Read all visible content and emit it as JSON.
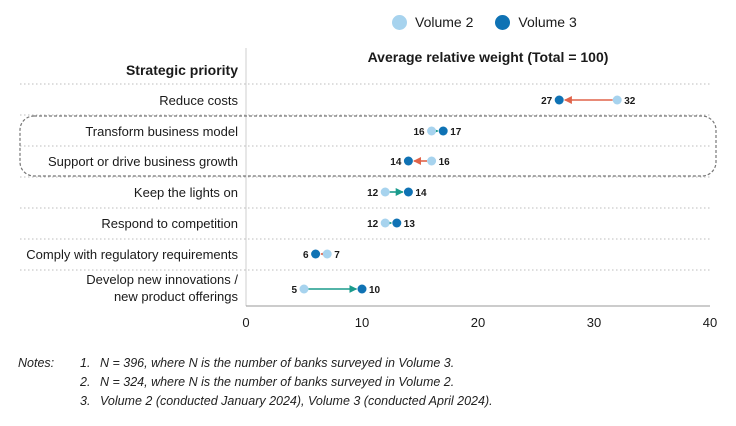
{
  "colors": {
    "volume2": "#a7d3ee",
    "volume3": "#0f72b4",
    "increase": "#1a9b8c",
    "decrease": "#e0644a",
    "gridline": "#bdbdbd",
    "group_box": "#777777"
  },
  "legend": {
    "volume2_label": "Volume 2",
    "volume3_label": "Volume 3"
  },
  "chart_data": {
    "type": "dumbbell",
    "title": "Average relative weight (Total = 100)",
    "category_header": "Strategic priority",
    "xlim": [
      0,
      40
    ],
    "xticks": [
      "0",
      "10",
      "20",
      "30",
      "40"
    ],
    "categories": [
      "Reduce costs",
      "Transform business model",
      "Support or drive business growth",
      "Keep the lights on",
      "Respond to competition",
      "Comply with regulatory requirements",
      "Develop new innovations / new product offerings"
    ],
    "category_lines": [
      [
        "Reduce costs"
      ],
      [
        "Transform business model"
      ],
      [
        "Support or drive business growth"
      ],
      [
        "Keep the lights on"
      ],
      [
        "Respond to competition"
      ],
      [
        "Comply with regulatory requirements"
      ],
      [
        "Develop new innovations /",
        "new product offerings"
      ]
    ],
    "series": [
      {
        "name": "Volume 2",
        "values": [
          32,
          16,
          16,
          12,
          12,
          7,
          5
        ]
      },
      {
        "name": "Volume 3",
        "values": [
          27,
          17,
          14,
          14,
          13,
          6,
          10
        ]
      }
    ],
    "highlighted_group": [
      "Transform business model",
      "Support or drive business growth"
    ],
    "grid": "horizontal-dotted",
    "legend_position": "top-right"
  },
  "notes": {
    "label": "Notes:",
    "items": [
      {
        "num": "1.",
        "text": "N = 396, where N is the number of banks surveyed in Volume 3."
      },
      {
        "num": "2.",
        "text": "N = 324, where N is the number of banks surveyed in Volume 2."
      },
      {
        "num": "3.",
        "text": "Volume 2 (conducted January 2024), Volume 3 (conducted April 2024)."
      }
    ]
  }
}
